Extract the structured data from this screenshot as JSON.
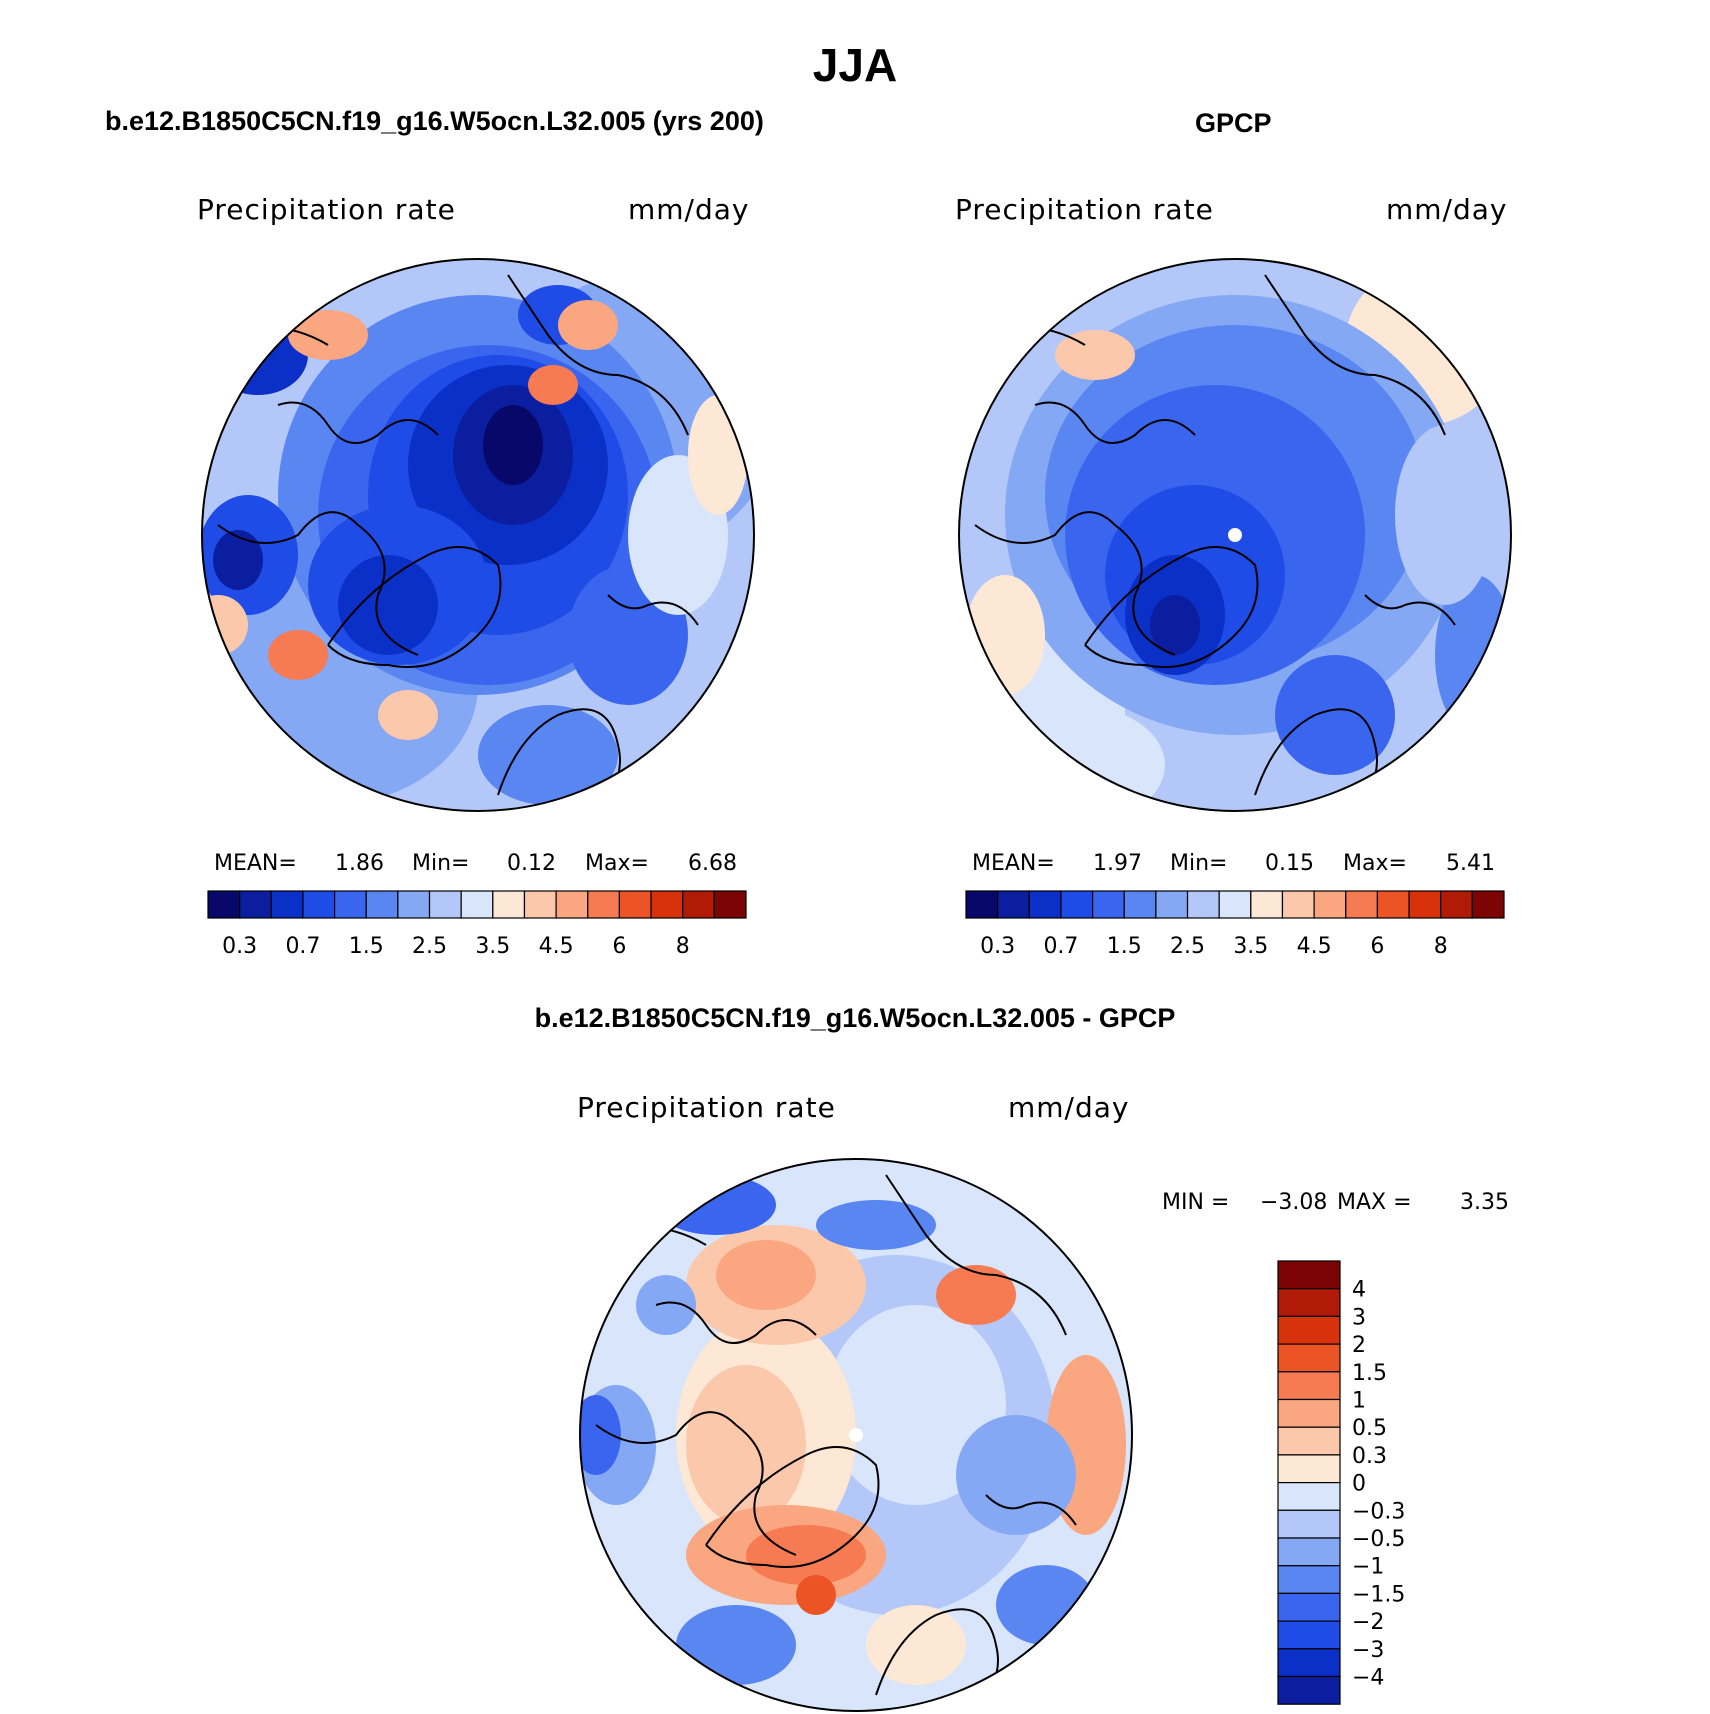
{
  "title": "JJA",
  "panels": [
    {
      "subtitle": "b.e12.B1850C5CN.f19_g16.W5ocn.L32.005 (yrs 200)",
      "variable": "Precipitation  rate",
      "units": "mm/day",
      "stats": {
        "mean_label": "MEAN=",
        "mean": "1.86",
        "min_label": "Min=",
        "min": "0.12",
        "max_label": "Max=",
        "max": "6.68"
      }
    },
    {
      "subtitle": "GPCP",
      "variable": "Precipitation  rate",
      "units": "mm/day",
      "stats": {
        "mean_label": "MEAN=",
        "mean": "1.97",
        "min_label": "Min=",
        "min": "0.15",
        "max_label": "Max=",
        "max": "5.41"
      }
    },
    {
      "subtitle": "b.e12.B1850C5CN.f19_g16.W5ocn.L32.005 - GPCP",
      "variable": "Precipitation  rate",
      "units": "mm/day",
      "stats": {
        "min_label": "MIN =",
        "min": "−3.08",
        "max_label": "MAX =",
        "max": "3.35"
      }
    }
  ],
  "chart_data": [
    {
      "type": "heatmap",
      "projection": "north-polar-stereographic",
      "title": "b.e12.B1850C5CN.f19_g16.W5ocn.L32.005 (yrs 200)",
      "units": "mm/day",
      "mean": 1.86,
      "min": 0.12,
      "max": 6.68,
      "colorbar": {
        "orientation": "horizontal",
        "levels": [
          0.2,
          0.3,
          0.5,
          0.7,
          1,
          1.5,
          2,
          2.5,
          3,
          3.5,
          4,
          4.5,
          5,
          6,
          7,
          8
        ],
        "tick_labels": [
          "0.3",
          "0.7",
          "1.5",
          "2.5",
          "3.5",
          "4.5",
          "6",
          "8"
        ],
        "colors": [
          "#08086b",
          "#0b1ea0",
          "#0a30c8",
          "#1f4ce6",
          "#3a66ef",
          "#5a86f2",
          "#85a8f5",
          "#b3c8f8",
          "#d8e5fb",
          "#fde7d5",
          "#fcc8ac",
          "#f9a681",
          "#f67b52",
          "#ec5426",
          "#d8320d",
          "#b01a06",
          "#7d0404"
        ]
      }
    },
    {
      "type": "heatmap",
      "projection": "north-polar-stereographic",
      "title": "GPCP",
      "units": "mm/day",
      "mean": 1.97,
      "min": 0.15,
      "max": 5.41,
      "colorbar": {
        "orientation": "horizontal",
        "levels": [
          0.2,
          0.3,
          0.5,
          0.7,
          1,
          1.5,
          2,
          2.5,
          3,
          3.5,
          4,
          4.5,
          5,
          6,
          7,
          8
        ],
        "tick_labels": [
          "0.3",
          "0.7",
          "1.5",
          "2.5",
          "3.5",
          "4.5",
          "6",
          "8"
        ],
        "colors": [
          "#08086b",
          "#0b1ea0",
          "#0a30c8",
          "#1f4ce6",
          "#3a66ef",
          "#5a86f2",
          "#85a8f5",
          "#b3c8f8",
          "#d8e5fb",
          "#fde7d5",
          "#fcc8ac",
          "#f9a681",
          "#f67b52",
          "#ec5426",
          "#d8320d",
          "#b01a06",
          "#7d0404"
        ]
      }
    },
    {
      "type": "heatmap",
      "projection": "north-polar-stereographic",
      "title": "b.e12.B1850C5CN.f19_g16.W5ocn.L32.005 - GPCP",
      "units": "mm/day",
      "min": -3.08,
      "max": 3.35,
      "colorbar": {
        "orientation": "vertical",
        "tick_labels": [
          "4",
          "3",
          "2",
          "1.5",
          "1",
          "0.5",
          "0.3",
          "0",
          "−0.3",
          "−0.5",
          "−1",
          "−1.5",
          "−2",
          "−3",
          "−4"
        ],
        "colors": [
          "#7d0404",
          "#b01a06",
          "#d8320d",
          "#ec5426",
          "#f67b52",
          "#f9a681",
          "#fcc8ac",
          "#fde7d5",
          "#d8e5fb",
          "#b3c8f8",
          "#85a8f5",
          "#5a86f2",
          "#3a66ef",
          "#1f4ce6",
          "#0a30c8",
          "#0b1ea0"
        ]
      }
    }
  ]
}
